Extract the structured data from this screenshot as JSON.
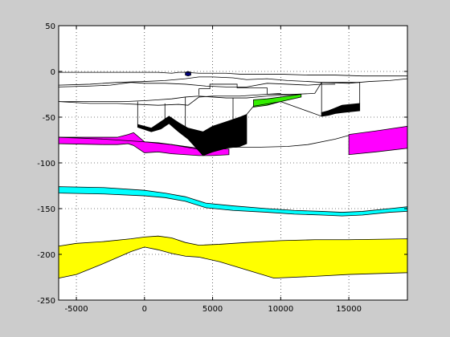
{
  "chart_data": {
    "type": "area",
    "title": "",
    "xlabel": "",
    "ylabel": "",
    "xlim": [
      -6300,
      19300
    ],
    "ylim": [
      -250,
      50
    ],
    "grid": true,
    "xticks": [
      -5000,
      0,
      5000,
      10000,
      15000
    ],
    "yticks": [
      50,
      0,
      -50,
      -100,
      -150,
      -200,
      -250
    ],
    "xtick_labels": [
      "-5000",
      "0",
      "5000",
      "10000",
      "15000"
    ],
    "ytick_labels": [
      "50",
      "0",
      "-50",
      "-100",
      "-150",
      "-200",
      "-250"
    ],
    "series": [
      {
        "color": "#ffff00",
        "top": [
          [
            -6300,
            -191
          ],
          [
            -5000,
            -188
          ],
          [
            -3000,
            -186
          ],
          [
            -1000,
            -183
          ],
          [
            0,
            -181
          ],
          [
            1000,
            -180
          ],
          [
            2000,
            -182
          ],
          [
            3000,
            -187
          ],
          [
            4000,
            -190
          ],
          [
            5500,
            -189
          ],
          [
            7500,
            -187
          ],
          [
            10000,
            -185
          ],
          [
            12500,
            -184
          ],
          [
            15000,
            -184
          ],
          [
            19300,
            -183
          ]
        ],
        "bottom": [
          [
            -6300,
            -226
          ],
          [
            -5000,
            -222
          ],
          [
            -3000,
            -210
          ],
          [
            -1000,
            -197
          ],
          [
            0,
            -192
          ],
          [
            1000,
            -195
          ],
          [
            2000,
            -199
          ],
          [
            3000,
            -202
          ],
          [
            4000,
            -203
          ],
          [
            5500,
            -208
          ],
          [
            7500,
            -217
          ],
          [
            9500,
            -226
          ],
          [
            12500,
            -224
          ],
          [
            15000,
            -222
          ],
          [
            19300,
            -220
          ]
        ]
      },
      {
        "color": "#00ffff",
        "top": [
          [
            -6300,
            -126
          ],
          [
            -3000,
            -127
          ],
          [
            0,
            -130
          ],
          [
            1500,
            -133
          ],
          [
            3000,
            -137
          ],
          [
            4500,
            -144
          ],
          [
            6500,
            -147
          ],
          [
            9000,
            -150
          ],
          [
            11000,
            -152
          ],
          [
            13000,
            -153
          ],
          [
            14500,
            -154
          ],
          [
            16000,
            -153
          ],
          [
            18000,
            -150
          ],
          [
            19300,
            -148
          ]
        ],
        "bottom": [
          [
            -6300,
            -133
          ],
          [
            -3000,
            -134
          ],
          [
            0,
            -136
          ],
          [
            1500,
            -138
          ],
          [
            3000,
            -142
          ],
          [
            4500,
            -149
          ],
          [
            6500,
            -152
          ],
          [
            9000,
            -154
          ],
          [
            11000,
            -156
          ],
          [
            13000,
            -157
          ],
          [
            14500,
            -158
          ],
          [
            16000,
            -157
          ],
          [
            18000,
            -154
          ],
          [
            19300,
            -153
          ]
        ]
      },
      {
        "color": "#ff00ff",
        "top": [
          [
            -6300,
            -72
          ],
          [
            -3000,
            -72
          ],
          [
            -2000,
            -72
          ],
          [
            -1200,
            -69
          ],
          [
            -800,
            -67
          ],
          [
            0,
            -77
          ],
          [
            1000,
            -78
          ],
          [
            2000,
            -80
          ],
          [
            3000,
            -82
          ],
          [
            4000,
            -84
          ],
          [
            5000,
            -84
          ],
          [
            6200,
            -85
          ]
        ],
        "bottom": [
          [
            -6300,
            -79
          ],
          [
            -3000,
            -80
          ],
          [
            -2000,
            -80
          ],
          [
            -1200,
            -79
          ],
          [
            -800,
            -81
          ],
          [
            0,
            -89
          ],
          [
            1000,
            -88
          ],
          [
            2000,
            -90
          ],
          [
            3000,
            -91
          ],
          [
            4000,
            -92
          ],
          [
            5000,
            -92
          ],
          [
            6200,
            -91
          ]
        ]
      },
      {
        "color": "#ff00ff",
        "top": [
          [
            15000,
            -69
          ],
          [
            17000,
            -65
          ],
          [
            19300,
            -60
          ]
        ],
        "bottom": [
          [
            15000,
            -91
          ],
          [
            17000,
            -88
          ],
          [
            19300,
            -84
          ]
        ]
      },
      {
        "color": "#000000",
        "top": [
          [
            -500,
            -58
          ],
          [
            500,
            -62
          ],
          [
            1200,
            -55
          ],
          [
            1800,
            -49
          ],
          [
            2500,
            -56
          ],
          [
            3200,
            -62
          ],
          [
            4300,
            -66
          ],
          [
            5000,
            -60
          ],
          [
            6000,
            -55
          ],
          [
            7000,
            -50
          ],
          [
            7500,
            -47
          ]
        ],
        "bottom": [
          [
            -500,
            -61
          ],
          [
            500,
            -66
          ],
          [
            1200,
            -63
          ],
          [
            1800,
            -57
          ],
          [
            2500,
            -66
          ],
          [
            3200,
            -74
          ],
          [
            4300,
            -92
          ],
          [
            5000,
            -88
          ],
          [
            6000,
            -84
          ],
          [
            7000,
            -82
          ],
          [
            7500,
            -79
          ]
        ]
      },
      {
        "color": "#000000",
        "top": [
          [
            13000,
            -45
          ],
          [
            13500,
            -43
          ],
          [
            14000,
            -40
          ],
          [
            14500,
            -37
          ],
          [
            15800,
            -35
          ]
        ],
        "bottom": [
          [
            13000,
            -49
          ],
          [
            13500,
            -48
          ],
          [
            14000,
            -46
          ],
          [
            14500,
            -45
          ],
          [
            15800,
            -43
          ]
        ]
      },
      {
        "color": "#33ee00",
        "top": [
          [
            8000,
            -31
          ],
          [
            9000,
            -30
          ],
          [
            10000,
            -28
          ],
          [
            11500,
            -25
          ]
        ],
        "bottom": [
          [
            8000,
            -39
          ],
          [
            9000,
            -37
          ],
          [
            10000,
            -33
          ],
          [
            11500,
            -28
          ]
        ]
      },
      {
        "color": "#000080",
        "top": [
          [
            3000,
            -1
          ],
          [
            3200,
            0
          ],
          [
            3400,
            -1
          ]
        ],
        "bottom": [
          [
            3000,
            -4
          ],
          [
            3200,
            -5
          ],
          [
            3400,
            -4
          ]
        ]
      }
    ],
    "lines": [
      [
        [
          -6300,
          -1
        ],
        [
          0,
          -1
        ],
        [
          1000,
          -1
        ],
        [
          2000,
          -2
        ],
        [
          2500,
          -1
        ],
        [
          3000,
          -1
        ],
        [
          4000,
          -2
        ],
        [
          5000,
          -2
        ],
        [
          6000,
          -2
        ],
        [
          7000,
          -3
        ],
        [
          8000,
          -3
        ],
        [
          10000,
          -3
        ],
        [
          12000,
          -4
        ],
        [
          14000,
          -4
        ],
        [
          16000,
          -5
        ],
        [
          19300,
          -5
        ]
      ],
      [
        [
          -6300,
          -15
        ],
        [
          -4000,
          -14
        ],
        [
          -2000,
          -12
        ],
        [
          0,
          -11
        ],
        [
          1500,
          -10
        ],
        [
          3000,
          -8
        ],
        [
          4000,
          -6
        ],
        [
          5000,
          -6
        ],
        [
          6500,
          -7
        ],
        [
          7500,
          -9
        ],
        [
          9000,
          -8
        ],
        [
          10500,
          -10
        ],
        [
          12000,
          -11
        ],
        [
          13000,
          -12
        ],
        [
          15000,
          -13
        ],
        [
          16500,
          -11
        ],
        [
          18000,
          -10
        ],
        [
          19300,
          -8
        ]
      ],
      [
        [
          -6300,
          -17
        ],
        [
          -4000,
          -16
        ],
        [
          -2500,
          -15
        ],
        [
          -1000,
          -12
        ],
        [
          0,
          -13
        ],
        [
          1500,
          -13
        ],
        [
          3000,
          -14
        ],
        [
          4500,
          -16
        ],
        [
          6000,
          -17
        ],
        [
          7500,
          -17
        ],
        [
          9000,
          -13
        ],
        [
          10500,
          -14
        ],
        [
          12000,
          -15
        ],
        [
          13000,
          -14
        ],
        [
          14000,
          -14
        ]
      ],
      [
        [
          -6300,
          -33
        ],
        [
          -3000,
          -33
        ],
        [
          -1500,
          -33
        ],
        [
          0,
          -32
        ],
        [
          1000,
          -31
        ],
        [
          2000,
          -30
        ],
        [
          3000,
          -28
        ],
        [
          4000,
          -27
        ],
        [
          5000,
          -28
        ],
        [
          6000,
          -29
        ],
        [
          7500,
          -29
        ],
        [
          9000,
          -27
        ],
        [
          10000,
          -26
        ],
        [
          11500,
          -25
        ]
      ],
      [
        [
          -6300,
          -33
        ],
        [
          -4000,
          -35
        ],
        [
          -2000,
          -35
        ],
        [
          -500,
          -36
        ],
        [
          1000,
          -37
        ],
        [
          2500,
          -36
        ],
        [
          3200,
          -37
        ],
        [
          4000,
          -28
        ],
        [
          5000,
          -27
        ],
        [
          7000,
          -27
        ],
        [
          8000,
          -26
        ],
        [
          9000,
          -25
        ],
        [
          10000,
          -24
        ]
      ],
      [
        [
          4000,
          -26
        ],
        [
          4000,
          -19
        ],
        [
          4800,
          -19
        ],
        [
          4800,
          -14
        ],
        [
          6800,
          -14
        ],
        [
          6800,
          -18
        ],
        [
          9000,
          -18
        ],
        [
          9000,
          -25
        ],
        [
          11000,
          -25
        ],
        [
          12500,
          -24
        ],
        [
          13000,
          -12
        ]
      ],
      [
        [
          -500,
          -58
        ],
        [
          -500,
          -33
        ]
      ],
      [
        [
          7500,
          -47
        ],
        [
          8000,
          -38
        ],
        [
          10000,
          -33
        ],
        [
          13000,
          -49
        ],
        [
          13000,
          -12
        ]
      ],
      [
        [
          13000,
          -12
        ],
        [
          15800,
          -12
        ],
        [
          15800,
          -35
        ]
      ],
      [
        [
          -6300,
          -72
        ],
        [
          -3000,
          -74
        ],
        [
          0,
          -77
        ],
        [
          2000,
          -80
        ],
        [
          3500,
          -84
        ],
        [
          4300,
          -86
        ],
        [
          6000,
          -83
        ],
        [
          8000,
          -83
        ],
        [
          10500,
          -82
        ],
        [
          12000,
          -80
        ],
        [
          14000,
          -74
        ],
        [
          15000,
          -70
        ]
      ],
      [
        [
          1500,
          -35
        ],
        [
          1500,
          -58
        ]
      ],
      [
        [
          3000,
          -28
        ],
        [
          3000,
          -60
        ]
      ],
      [
        [
          6500,
          -29
        ],
        [
          6500,
          -55
        ]
      ]
    ]
  }
}
